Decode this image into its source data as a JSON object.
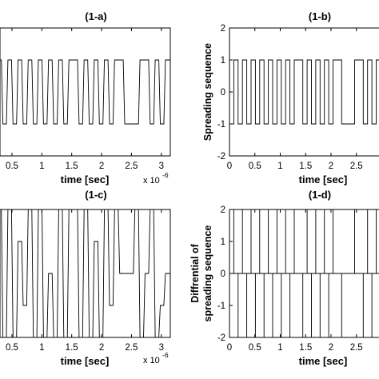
{
  "chart_data": [
    {
      "panel": "1-a",
      "type": "line",
      "title": "(1-a)",
      "xlabel": "time [sec]",
      "ylabel": "",
      "x_multiplier": "x 10",
      "x_multiplier_exp": "-6",
      "xlim": [
        0.3,
        3.15
      ],
      "ylim": [
        -2,
        2
      ],
      "xticks": [
        0.5,
        1,
        1.5,
        2,
        2.5,
        3
      ],
      "xtick_labels": [
        "0.5",
        "1",
        "1.5",
        "2",
        "2.5",
        "3"
      ],
      "yticks": [],
      "ytick_labels": [],
      "shape": "linear",
      "sequence": [
        1,
        -1,
        1,
        -1,
        1,
        -1,
        1,
        -1,
        1,
        -1,
        1,
        -1,
        1,
        -1,
        1,
        1,
        -1,
        1,
        -1,
        1,
        -1,
        1,
        -1,
        1,
        1,
        -1,
        -1,
        -1,
        1,
        1,
        -1,
        1,
        -1,
        1,
        1
      ],
      "seq_start": 0.25,
      "chip_duration": 0.085
    },
    {
      "panel": "1-b",
      "type": "line",
      "title": "(1-b)",
      "xlabel": "time [sec]",
      "ylabel": "Spreading sequence",
      "xlim": [
        0,
        3.15
      ],
      "ylim": [
        -2,
        2
      ],
      "xticks": [
        0,
        0.5,
        1,
        1.5,
        2,
        2.5,
        3
      ],
      "xtick_labels": [
        "0",
        "0.5",
        "1",
        "1.5",
        "2",
        "2.5",
        "3"
      ],
      "yticks": [
        -2,
        -1,
        0,
        1,
        2
      ],
      "ytick_labels": [
        "-2",
        "-1",
        "0",
        "1",
        "2"
      ],
      "shape": "step",
      "sequence": [
        -1,
        1,
        -1,
        1,
        -1,
        1,
        -1,
        1,
        -1,
        1,
        -1,
        1,
        -1,
        1,
        -1,
        1,
        1,
        -1,
        1,
        -1,
        1,
        -1,
        1,
        -1,
        1,
        1,
        -1,
        -1,
        -1,
        1,
        1,
        -1,
        1,
        -1,
        1,
        1
      ],
      "seq_start": 0,
      "chip_duration": 0.085
    },
    {
      "panel": "1-c",
      "type": "line",
      "title": "(1-c)",
      "xlabel": "time [sec]",
      "ylabel": "",
      "x_multiplier": "x 10",
      "x_multiplier_exp": "-6",
      "xlim": [
        0.3,
        3.15
      ],
      "ylim": [
        -2,
        2
      ],
      "xticks": [
        0.5,
        1,
        1.5,
        2,
        2.5,
        3
      ],
      "xtick_labels": [
        "0.5",
        "1",
        "1.5",
        "2",
        "2.5",
        "3"
      ],
      "yticks": [],
      "ytick_labels": [],
      "shape": "linear",
      "sequence": [
        2,
        -2,
        2,
        -2,
        1,
        -1,
        2,
        -2,
        2,
        -2,
        0,
        -2,
        2,
        -2,
        2,
        2,
        -2,
        2,
        -2,
        1,
        -2,
        2,
        -1,
        2,
        0,
        0,
        0,
        2,
        -2,
        0,
        2,
        -2,
        -1,
        0,
        0
      ],
      "seq_start": 0.25,
      "chip_duration": 0.085
    },
    {
      "panel": "1-d",
      "type": "line",
      "title": "(1-d)",
      "xlabel": "time [sec]",
      "ylabel": "Diffrential of",
      "ylabel2": "spreading sequence",
      "xlim": [
        0,
        3.15
      ],
      "ylim": [
        -2,
        2
      ],
      "xticks": [
        0,
        0.5,
        1,
        1.5,
        2,
        2.5,
        3
      ],
      "xtick_labels": [
        "0",
        "0.5",
        "1",
        "1.5",
        "2",
        "2.5",
        "3"
      ],
      "yticks": [
        -2,
        -1,
        0,
        1,
        2
      ],
      "ytick_labels": [
        "-2",
        "-1",
        "0",
        "1",
        "2"
      ],
      "shape": "impulse",
      "sequence": [
        -1,
        1,
        -1,
        1,
        -1,
        1,
        -1,
        1,
        -1,
        1,
        -1,
        1,
        -1,
        1,
        -1,
        1,
        1,
        -1,
        1,
        -1,
        1,
        -1,
        1,
        -1,
        1,
        1,
        -1,
        -1,
        -1,
        1,
        1,
        -1,
        1,
        -1,
        1,
        1
      ],
      "seq_start": 0,
      "chip_duration": 0.085
    }
  ]
}
